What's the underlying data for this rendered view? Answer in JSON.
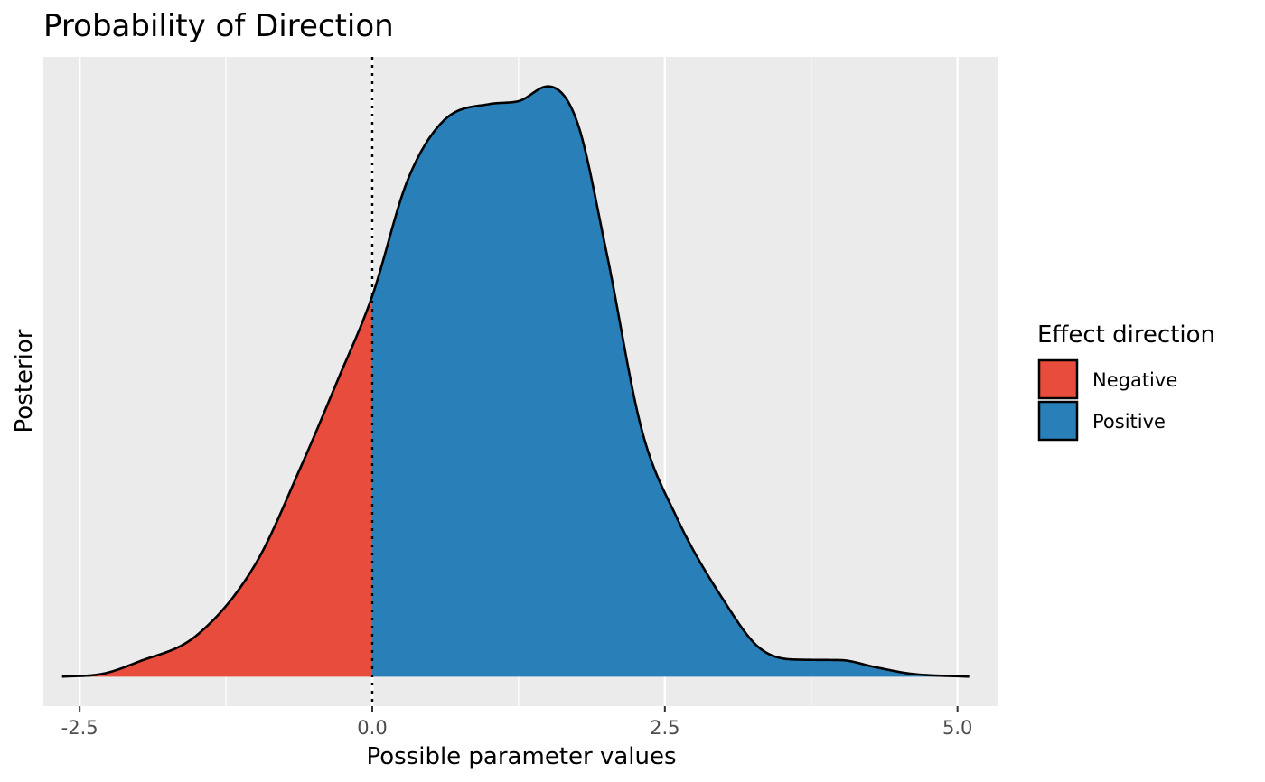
{
  "chart_data": {
    "type": "area",
    "title": "Probability of Direction",
    "xlabel": "Possible parameter values",
    "ylabel": "Posterior",
    "xlim": [
      -2.81,
      5.35
    ],
    "ylim": [
      -0.05,
      1.05
    ],
    "x_ticks": [
      -2.5,
      0.0,
      2.5,
      5.0
    ],
    "x_tick_labels": [
      "-2.5",
      "0.0",
      "2.5",
      "5.0"
    ],
    "y_ticks_shown": false,
    "grid": true,
    "reference_line_x": 0,
    "colors": {
      "negative": "#E74C3C",
      "positive": "#2980B9",
      "panel_background": "#EBEBEB",
      "grid": "#FFFFFF"
    },
    "legend": {
      "title": "Effect direction",
      "position": "right",
      "entries": [
        {
          "label": "Negative",
          "color": "#E74C3C"
        },
        {
          "label": "Positive",
          "color": "#2980B9"
        }
      ]
    },
    "density_curve": [
      {
        "x": -2.65,
        "y": 0.0
      },
      {
        "x": -2.3,
        "y": 0.005
      },
      {
        "x": -2.0,
        "y": 0.025
      },
      {
        "x": -1.5,
        "y": 0.07
      },
      {
        "x": -1.0,
        "y": 0.19
      },
      {
        "x": -0.6,
        "y": 0.36
      },
      {
        "x": -0.3,
        "y": 0.5
      },
      {
        "x": 0.0,
        "y": 0.645
      },
      {
        "x": 0.3,
        "y": 0.84
      },
      {
        "x": 0.6,
        "y": 0.94
      },
      {
        "x": 1.0,
        "y": 0.97
      },
      {
        "x": 1.25,
        "y": 0.975
      },
      {
        "x": 1.5,
        "y": 1.0
      },
      {
        "x": 1.75,
        "y": 0.94
      },
      {
        "x": 2.0,
        "y": 0.72
      },
      {
        "x": 2.3,
        "y": 0.42
      },
      {
        "x": 2.6,
        "y": 0.27
      },
      {
        "x": 3.0,
        "y": 0.13
      },
      {
        "x": 3.3,
        "y": 0.05
      },
      {
        "x": 3.6,
        "y": 0.029
      },
      {
        "x": 4.0,
        "y": 0.028
      },
      {
        "x": 4.3,
        "y": 0.016
      },
      {
        "x": 4.6,
        "y": 0.005
      },
      {
        "x": 5.1,
        "y": 0.0
      }
    ]
  }
}
